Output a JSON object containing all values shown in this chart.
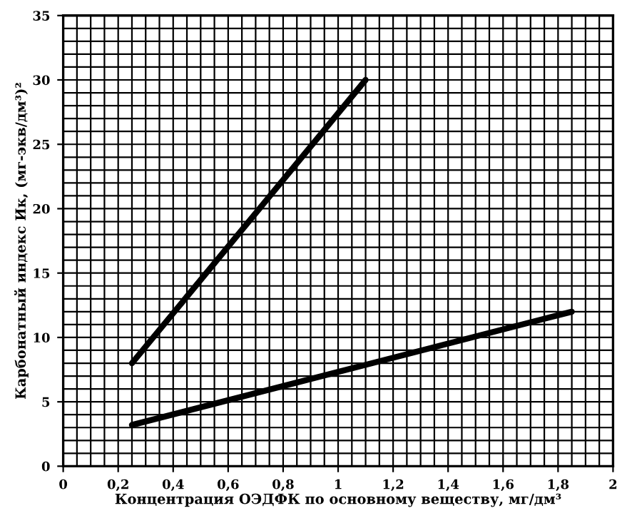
{
  "chart_data": {
    "type": "line",
    "xlabel": "Концентрация ОЭДФК по основному веществу, мг/дм³",
    "ylabel": "Карбонатный индекс Ик, (мг-экв/дм³)²",
    "series": [
      {
        "color": "#000000",
        "x": [
          0.25,
          1.1
        ],
        "values": [
          8,
          30
        ]
      },
      {
        "color": "#000000",
        "x": [
          0.25,
          1.85
        ],
        "values": [
          3.2,
          12
        ]
      }
    ],
    "xlim": [
      0,
      2
    ],
    "ylim": [
      0,
      35
    ],
    "xticks": [
      {
        "value": 0,
        "label": "0"
      },
      {
        "value": 0.2,
        "label": "0,2"
      },
      {
        "value": 0.4,
        "label": "0,4"
      },
      {
        "value": 0.6,
        "label": "0,6"
      },
      {
        "value": 0.8,
        "label": "0,8"
      },
      {
        "value": 1,
        "label": "1"
      },
      {
        "value": 1.2,
        "label": "1,2"
      },
      {
        "value": 1.4,
        "label": "1,4"
      },
      {
        "value": 1.6,
        "label": "1,6"
      },
      {
        "value": 1.8,
        "label": "1,8"
      },
      {
        "value": 2,
        "label": "2"
      }
    ],
    "yticks": [
      0,
      5,
      10,
      15,
      20,
      25,
      30,
      35
    ],
    "grid": true
  }
}
